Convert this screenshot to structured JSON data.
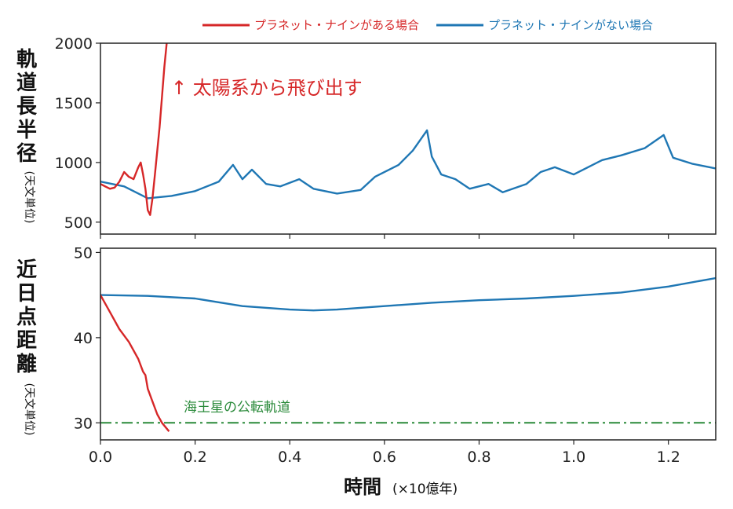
{
  "legend": {
    "with_p9": "プラネット・ナインがある場合",
    "without_p9": "プラネット・ナインがない場合"
  },
  "colors": {
    "with_p9": "#d62728",
    "without_p9": "#1f77b4",
    "neptune": "#2a8a3a"
  },
  "xlabel": "時間",
  "xlabel_unit": "(×10億年)",
  "chart_data": [
    {
      "type": "line",
      "ylabel": "軌道長半径",
      "ylabel_unit": "(天文単位)",
      "xlim": [
        0,
        1.3
      ],
      "ylim": [
        400,
        2000
      ],
      "yticks": [
        500,
        1000,
        1500,
        2000
      ],
      "xticks": [
        0.0,
        0.2,
        0.4,
        0.6,
        0.8,
        1.0,
        1.2
      ],
      "annotation": "↑ 太陽系から飛び出す",
      "series": [
        {
          "name": "プラネット・ナインがある場合",
          "points": [
            [
              0.0,
              820
            ],
            [
              0.01,
              800
            ],
            [
              0.02,
              780
            ],
            [
              0.03,
              790
            ],
            [
              0.04,
              840
            ],
            [
              0.05,
              920
            ],
            [
              0.06,
              880
            ],
            [
              0.07,
              860
            ],
            [
              0.08,
              960
            ],
            [
              0.085,
              1000
            ],
            [
              0.09,
              900
            ],
            [
              0.095,
              780
            ],
            [
              0.1,
              600
            ],
            [
              0.105,
              560
            ],
            [
              0.11,
              700
            ],
            [
              0.115,
              900
            ],
            [
              0.12,
              1100
            ],
            [
              0.125,
              1300
            ],
            [
              0.13,
              1550
            ],
            [
              0.135,
              1800
            ],
            [
              0.14,
              2000
            ]
          ]
        },
        {
          "name": "プラネット・ナインがない場合",
          "points": [
            [
              0.0,
              840
            ],
            [
              0.05,
              800
            ],
            [
              0.1,
              700
            ],
            [
              0.15,
              720
            ],
            [
              0.2,
              760
            ],
            [
              0.25,
              840
            ],
            [
              0.28,
              980
            ],
            [
              0.3,
              860
            ],
            [
              0.32,
              940
            ],
            [
              0.35,
              820
            ],
            [
              0.38,
              800
            ],
            [
              0.42,
              860
            ],
            [
              0.45,
              780
            ],
            [
              0.5,
              740
            ],
            [
              0.55,
              770
            ],
            [
              0.58,
              880
            ],
            [
              0.63,
              980
            ],
            [
              0.66,
              1100
            ],
            [
              0.69,
              1270
            ],
            [
              0.7,
              1050
            ],
            [
              0.72,
              900
            ],
            [
              0.75,
              860
            ],
            [
              0.78,
              780
            ],
            [
              0.82,
              820
            ],
            [
              0.85,
              750
            ],
            [
              0.9,
              820
            ],
            [
              0.93,
              920
            ],
            [
              0.96,
              960
            ],
            [
              1.0,
              900
            ],
            [
              1.03,
              960
            ],
            [
              1.06,
              1020
            ],
            [
              1.1,
              1060
            ],
            [
              1.15,
              1120
            ],
            [
              1.19,
              1230
            ],
            [
              1.21,
              1040
            ],
            [
              1.25,
              990
            ],
            [
              1.3,
              950
            ]
          ]
        }
      ]
    },
    {
      "type": "line",
      "ylabel": "近日点距離",
      "ylabel_unit": "(天文単位)",
      "xlim": [
        0,
        1.3
      ],
      "ylim": [
        28,
        50.5
      ],
      "yticks": [
        30,
        40,
        50
      ],
      "xticks": [
        0.0,
        0.2,
        0.4,
        0.6,
        0.8,
        1.0,
        1.2
      ],
      "annotation": "海王星の公転軌道",
      "neptune_y": 30,
      "series": [
        {
          "name": "プラネット・ナインがある場合",
          "points": [
            [
              0.0,
              45
            ],
            [
              0.02,
              43
            ],
            [
              0.04,
              41
            ],
            [
              0.06,
              39.5
            ],
            [
              0.08,
              37.5
            ],
            [
              0.09,
              36
            ],
            [
              0.095,
              35.6
            ],
            [
              0.1,
              34
            ],
            [
              0.11,
              32.5
            ],
            [
              0.12,
              31
            ],
            [
              0.13,
              30
            ],
            [
              0.145,
              29
            ]
          ]
        },
        {
          "name": "プラネット・ナインがない場合",
          "points": [
            [
              0.0,
              45
            ],
            [
              0.1,
              44.9
            ],
            [
              0.2,
              44.6
            ],
            [
              0.3,
              43.7
            ],
            [
              0.4,
              43.3
            ],
            [
              0.45,
              43.2
            ],
            [
              0.5,
              43.3
            ],
            [
              0.6,
              43.7
            ],
            [
              0.7,
              44.1
            ],
            [
              0.8,
              44.4
            ],
            [
              0.9,
              44.6
            ],
            [
              1.0,
              44.9
            ],
            [
              1.1,
              45.3
            ],
            [
              1.2,
              46.0
            ],
            [
              1.3,
              47.0
            ]
          ]
        }
      ]
    }
  ]
}
